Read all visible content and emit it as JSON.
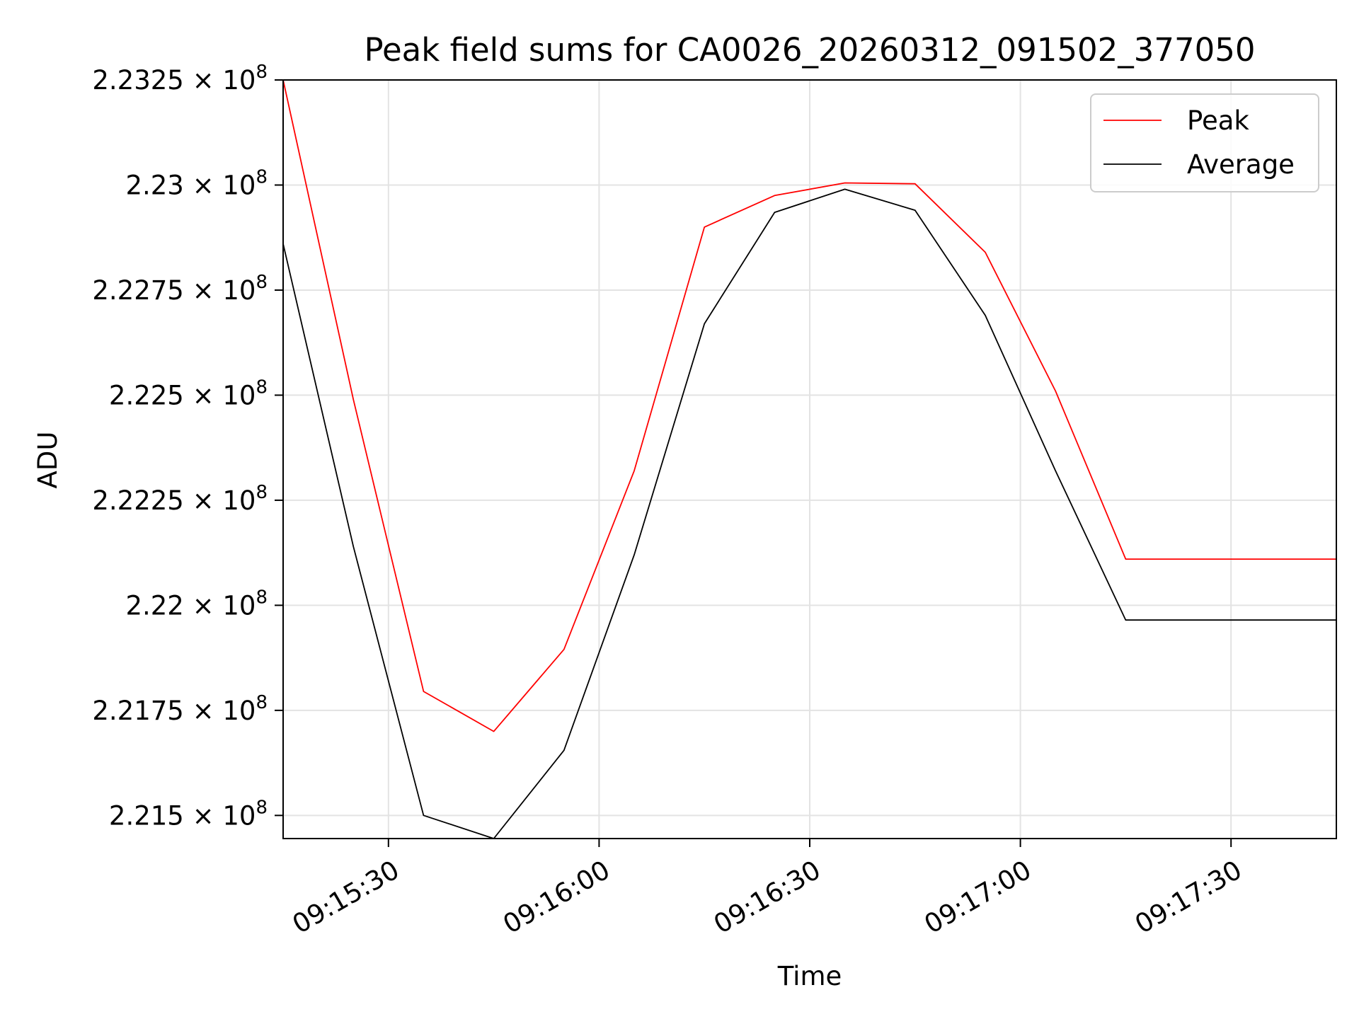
{
  "chart_data": {
    "type": "line",
    "title": "Peak field sums for CA0026_20260312_091502_377050",
    "xlabel": "Time",
    "ylabel": "ADU",
    "x": [
      "09:15:15",
      "09:15:25",
      "09:15:35",
      "09:15:45",
      "09:15:55",
      "09:16:05",
      "09:16:15",
      "09:16:25",
      "09:16:35",
      "09:16:45",
      "09:16:55",
      "09:17:05",
      "09:17:15",
      "09:17:25",
      "09:17:35",
      "09:17:45"
    ],
    "series": [
      {
        "name": "Peak",
        "color": "#ff0000",
        "values": [
          223250000,
          222490000,
          221795000,
          221700000,
          221895000,
          222320000,
          222900000,
          222975000,
          223005000,
          223003000,
          222840000,
          222510000,
          222110000,
          222110000,
          222110000,
          222110000
        ]
      },
      {
        "name": "Average",
        "color": "#000000",
        "values": [
          222860000,
          222140000,
          221500000,
          221445000,
          221655000,
          222120000,
          222670000,
          222935000,
          222990000,
          222940000,
          222690000,
          222320000,
          221965000,
          221965000,
          221965000,
          221965000
        ]
      }
    ],
    "xlim": [
      "09:15:15",
      "09:17:45"
    ],
    "ylim": [
      221445000,
      223250000
    ],
    "xticks": [
      "09:15:30",
      "09:16:00",
      "09:16:30",
      "09:17:00",
      "09:17:30"
    ],
    "yticks": [
      {
        "value": 221500000,
        "mantissa": "2.215",
        "exp": "8"
      },
      {
        "value": 221750000,
        "mantissa": "2.2175",
        "exp": "8"
      },
      {
        "value": 222000000,
        "mantissa": "2.22",
        "exp": "8"
      },
      {
        "value": 222250000,
        "mantissa": "2.2225",
        "exp": "8"
      },
      {
        "value": 222500000,
        "mantissa": "2.225",
        "exp": "8"
      },
      {
        "value": 222750000,
        "mantissa": "2.2275",
        "exp": "8"
      },
      {
        "value": 223000000,
        "mantissa": "2.23",
        "exp": "8"
      },
      {
        "value": 223250000,
        "mantissa": "2.2325",
        "exp": "8"
      }
    ],
    "grid": true,
    "legend_position": "top-right"
  }
}
